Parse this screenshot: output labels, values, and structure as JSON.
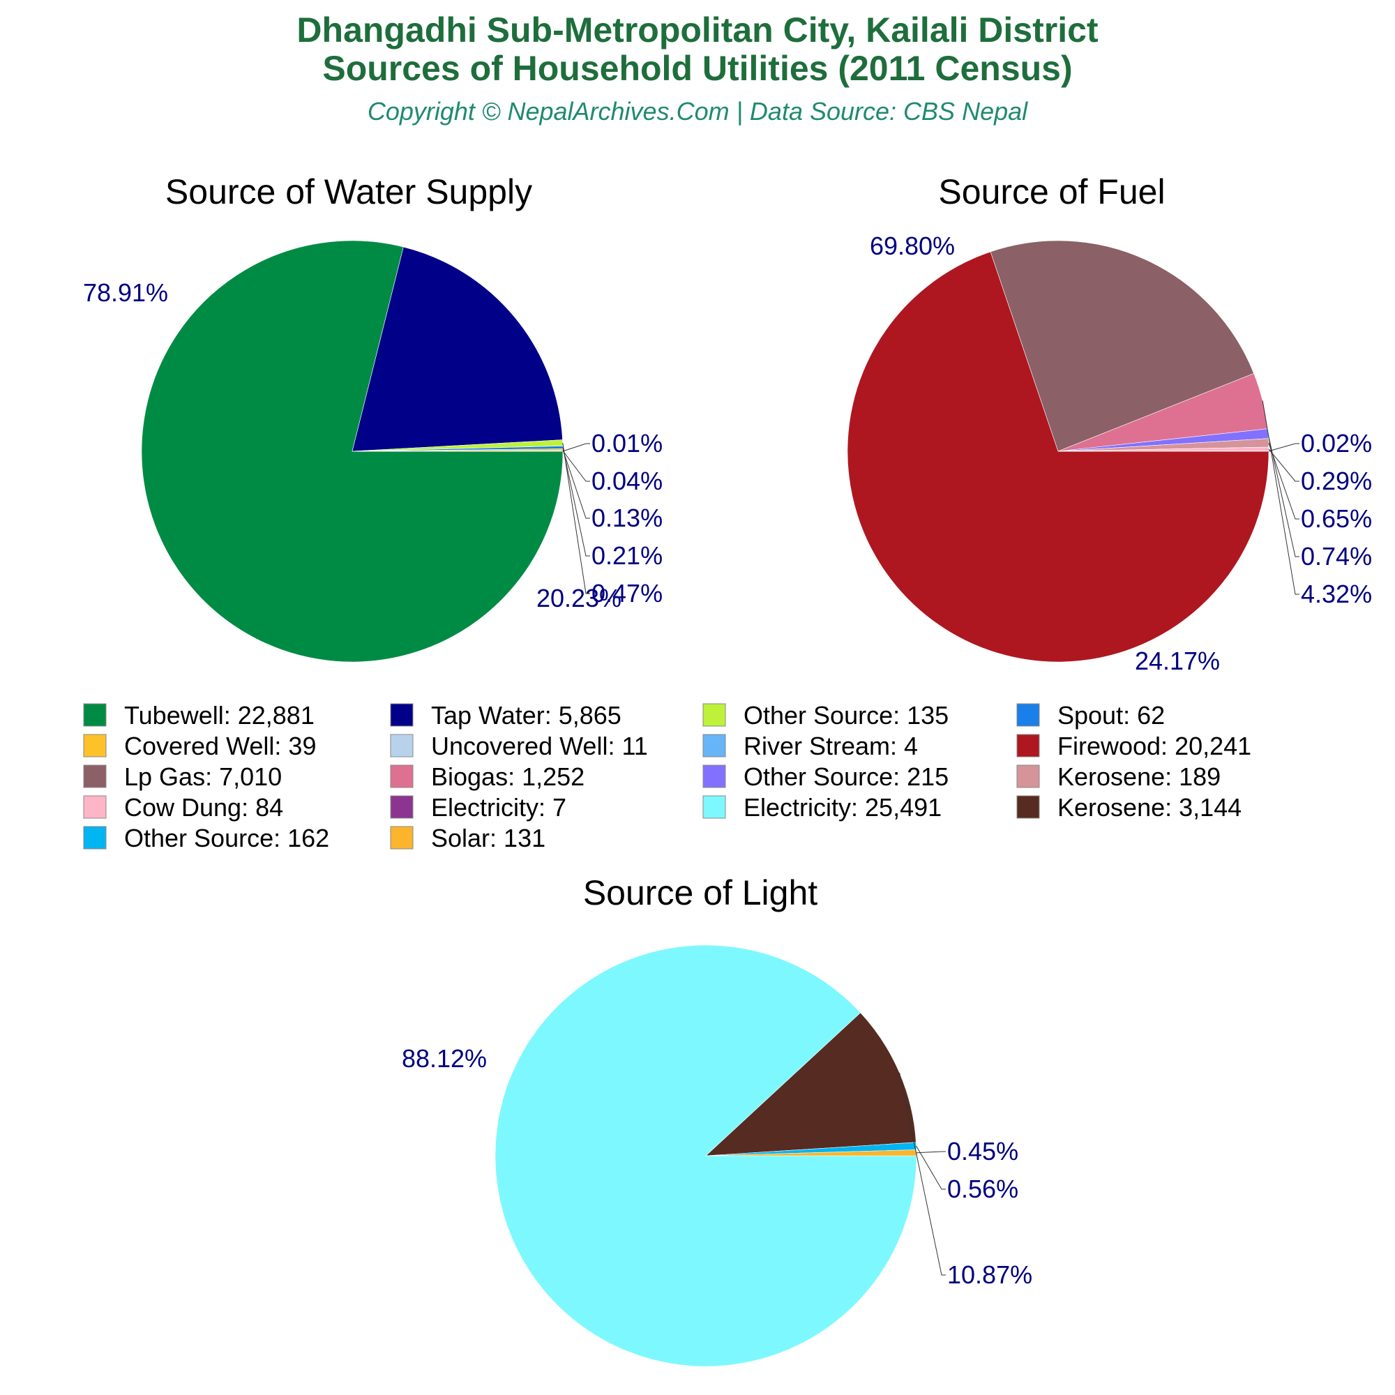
{
  "title_line1": "Dhangadhi Sub-Metropolitan City, Kailali District",
  "title_line2": "Sources of Household Utilities (2011 Census)",
  "subtitle": "Copyright © NepalArchives.Com | Data Source: CBS Nepal",
  "chart_data": [
    {
      "type": "pie",
      "title": "Source of Water Supply",
      "slices": [
        {
          "label": "Tubewell",
          "value": 22881,
          "value_text": "22,881",
          "color": "#008b44",
          "pct": "78.91%"
        },
        {
          "label": "Tap Water",
          "value": 5865,
          "value_text": "5,865",
          "color": "#000088",
          "pct": "20.23%"
        },
        {
          "label": "Other Source",
          "value": 135,
          "value_text": "135",
          "color": "#bef23a",
          "pct": "0.47%"
        },
        {
          "label": "Spout",
          "value": 62,
          "value_text": "62",
          "color": "#1a7fe8",
          "pct": "0.21%"
        },
        {
          "label": "Covered Well",
          "value": 39,
          "value_text": "39",
          "color": "#fdc12a",
          "pct": "0.13%"
        },
        {
          "label": "Uncovered Well",
          "value": 11,
          "value_text": "11",
          "color": "#b9d2ec",
          "pct": "0.04%"
        },
        {
          "label": "River Stream",
          "value": 4,
          "value_text": "4",
          "color": "#66b5f7",
          "pct": "0.01%"
        }
      ]
    },
    {
      "type": "pie",
      "title": "Source of Fuel",
      "slices": [
        {
          "label": "Firewood",
          "value": 20241,
          "value_text": "20,241",
          "color": "#ae1720",
          "pct": "69.80%"
        },
        {
          "label": "Lp Gas",
          "value": 7010,
          "value_text": "7,010",
          "color": "#8b6066",
          "pct": "24.17%"
        },
        {
          "label": "Biogas",
          "value": 1252,
          "value_text": "1,252",
          "color": "#de7191",
          "pct": "4.32%"
        },
        {
          "label": "Other Source",
          "value": 215,
          "value_text": "215",
          "color": "#8271ff",
          "pct": "0.74%"
        },
        {
          "label": "Kerosene",
          "value": 189,
          "value_text": "189",
          "color": "#d5939a",
          "pct": "0.65%"
        },
        {
          "label": "Cow Dung",
          "value": 84,
          "value_text": "84",
          "color": "#feb5c8",
          "pct": "0.29%"
        },
        {
          "label": "Electricity",
          "value": 7,
          "value_text": "7",
          "color": "#8b3590",
          "pct": "0.02%"
        }
      ]
    },
    {
      "type": "pie",
      "title": "Source of Light",
      "slices": [
        {
          "label": "Electricity",
          "value": 25491,
          "value_text": "25,491",
          "color": "#7ef8ff",
          "pct": "88.12%"
        },
        {
          "label": "Kerosene",
          "value": 3144,
          "value_text": "3,144",
          "color": "#562b21",
          "pct": "10.87%"
        },
        {
          "label": "Other Source",
          "value": 162,
          "value_text": "162",
          "color": "#00b5f1",
          "pct": "0.56%"
        },
        {
          "label": "Solar",
          "value": 131,
          "value_text": "131",
          "color": "#fbb42b",
          "pct": "0.45%"
        }
      ]
    }
  ],
  "legend": [
    {
      "label": "Tubewell: 22,881",
      "color": "#008b44"
    },
    {
      "label": "Tap Water: 5,865",
      "color": "#000088"
    },
    {
      "label": "Other Source: 135",
      "color": "#bef23a"
    },
    {
      "label": "Spout: 62",
      "color": "#1a7fe8"
    },
    {
      "label": "Covered Well: 39",
      "color": "#fdc12a"
    },
    {
      "label": "Uncovered Well: 11",
      "color": "#b9d2ec"
    },
    {
      "label": "River Stream: 4",
      "color": "#66b5f7"
    },
    {
      "label": "Firewood: 20,241",
      "color": "#ae1720"
    },
    {
      "label": "Lp Gas: 7,010",
      "color": "#8b6066"
    },
    {
      "label": "Biogas: 1,252",
      "color": "#de7191"
    },
    {
      "label": "Other Source: 215",
      "color": "#8271ff"
    },
    {
      "label": "Kerosene: 189",
      "color": "#d5939a"
    },
    {
      "label": "Cow Dung: 84",
      "color": "#feb5c8"
    },
    {
      "label": "Electricity: 7",
      "color": "#8b3590"
    },
    {
      "label": "Electricity: 25,491",
      "color": "#7ef8ff"
    },
    {
      "label": "Kerosene: 3,144",
      "color": "#562b21"
    },
    {
      "label": "Other Source: 162",
      "color": "#00b5f1"
    },
    {
      "label": "Solar: 131",
      "color": "#fbb42b"
    }
  ]
}
